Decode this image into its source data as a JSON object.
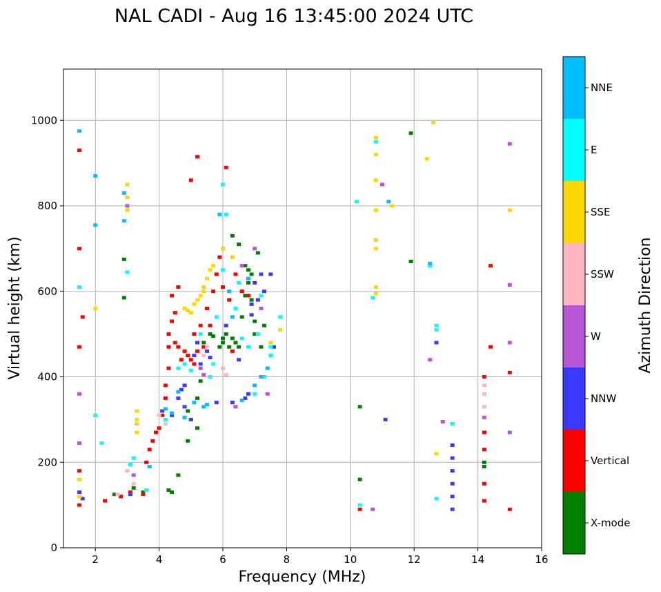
{
  "chart_data": {
    "type": "scatter",
    "title": "NAL CADI - Aug 16 13:45:00 2024 UTC",
    "xlabel": "Frequency (MHz)",
    "ylabel": "Virtual height (km)",
    "xlim": [
      1,
      16
    ],
    "ylim": [
      0,
      1120
    ],
    "xticks": [
      2,
      4,
      6,
      8,
      10,
      12,
      14,
      16
    ],
    "yticks": [
      0,
      200,
      400,
      600,
      800,
      1000
    ],
    "grid": true,
    "colorbar": {
      "label": "Azimuth Direction",
      "categories": [
        "X-mode",
        "Vertical",
        "NNW",
        "W",
        "SSW",
        "SSE",
        "E",
        "NNE"
      ],
      "colors": [
        "#008000",
        "#ff0000",
        "#3a3aff",
        "#b856d6",
        "#ffb6c1",
        "#ffd700",
        "#00ffff",
        "#00bfff"
      ]
    },
    "series": [
      {
        "name": "X-mode",
        "points": [
          [
            2.6,
            125
          ],
          [
            2.9,
            675
          ],
          [
            2.9,
            585
          ],
          [
            3.2,
            140
          ],
          [
            3.5,
            130
          ],
          [
            4.3,
            135
          ],
          [
            4.4,
            130
          ],
          [
            4.6,
            170
          ],
          [
            4.9,
            250
          ],
          [
            4.9,
            320
          ],
          [
            5.2,
            280
          ],
          [
            5.2,
            350
          ],
          [
            5.3,
            390
          ],
          [
            5.4,
            480
          ],
          [
            5.6,
            500
          ],
          [
            5.7,
            495
          ],
          [
            5.9,
            470
          ],
          [
            6.0,
            480
          ],
          [
            6.0,
            490
          ],
          [
            6.1,
            500
          ],
          [
            6.2,
            470
          ],
          [
            6.3,
            490
          ],
          [
            6.3,
            730
          ],
          [
            6.4,
            480
          ],
          [
            6.5,
            470
          ],
          [
            6.6,
            600
          ],
          [
            6.6,
            540
          ],
          [
            6.7,
            660
          ],
          [
            6.8,
            650
          ],
          [
            6.8,
            620
          ],
          [
            6.9,
            580
          ],
          [
            7.0,
            530
          ],
          [
            7.0,
            500
          ],
          [
            7.1,
            690
          ],
          [
            7.2,
            470
          ],
          [
            7.3,
            520
          ],
          [
            6.5,
            710
          ],
          [
            6.9,
            640
          ],
          [
            6.7,
            590
          ],
          [
            10.3,
            330
          ],
          [
            10.3,
            160
          ],
          [
            11.9,
            970
          ],
          [
            11.9,
            670
          ],
          [
            14.2,
            200
          ],
          [
            14.2,
            190
          ]
        ]
      },
      {
        "name": "Vertical",
        "points": [
          [
            1.5,
            470
          ],
          [
            1.5,
            180
          ],
          [
            1.5,
            100
          ],
          [
            1.5,
            930
          ],
          [
            1.6,
            540
          ],
          [
            1.5,
            700
          ],
          [
            2.3,
            110
          ],
          [
            2.8,
            120
          ],
          [
            3.1,
            130
          ],
          [
            3.5,
            125
          ],
          [
            3.6,
            200
          ],
          [
            3.7,
            230
          ],
          [
            3.8,
            250
          ],
          [
            3.9,
            270
          ],
          [
            4.0,
            280
          ],
          [
            4.1,
            310
          ],
          [
            4.2,
            350
          ],
          [
            4.2,
            380
          ],
          [
            4.3,
            420
          ],
          [
            4.3,
            470
          ],
          [
            4.3,
            500
          ],
          [
            4.4,
            590
          ],
          [
            4.4,
            530
          ],
          [
            4.5,
            550
          ],
          [
            4.5,
            480
          ],
          [
            4.6,
            470
          ],
          [
            4.7,
            440
          ],
          [
            4.6,
            610
          ],
          [
            4.8,
            460
          ],
          [
            4.9,
            450
          ],
          [
            5.0,
            440
          ],
          [
            5.1,
            430
          ],
          [
            5.1,
            500
          ],
          [
            5.2,
            460
          ],
          [
            5.3,
            520
          ],
          [
            5.4,
            470
          ],
          [
            5.5,
            560
          ],
          [
            5.6,
            520
          ],
          [
            5.7,
            600
          ],
          [
            5.8,
            640
          ],
          [
            5.9,
            680
          ],
          [
            6.0,
            610
          ],
          [
            6.0,
            700
          ],
          [
            6.1,
            890
          ],
          [
            6.2,
            580
          ],
          [
            6.3,
            460
          ],
          [
            6.4,
            640
          ],
          [
            6.6,
            600
          ],
          [
            6.8,
            590
          ],
          [
            5.2,
            915
          ],
          [
            5.0,
            860
          ],
          [
            10.3,
            90
          ],
          [
            14.2,
            400
          ],
          [
            14.2,
            230
          ],
          [
            14.2,
            150
          ],
          [
            14.2,
            110
          ],
          [
            14.2,
            270
          ],
          [
            14.4,
            660
          ],
          [
            14.4,
            470
          ],
          [
            15.0,
            410
          ],
          [
            15.0,
            90
          ]
        ]
      },
      {
        "name": "NNW",
        "points": [
          [
            1.5,
            130
          ],
          [
            1.6,
            115
          ],
          [
            3.1,
            125
          ],
          [
            4.1,
            320
          ],
          [
            4.4,
            310
          ],
          [
            4.6,
            350
          ],
          [
            4.7,
            370
          ],
          [
            4.8,
            380
          ],
          [
            4.8,
            330
          ],
          [
            5.0,
            300
          ],
          [
            5.1,
            450
          ],
          [
            5.2,
            480
          ],
          [
            5.3,
            430
          ],
          [
            5.5,
            460
          ],
          [
            5.6,
            445
          ],
          [
            5.8,
            340
          ],
          [
            6.1,
            520
          ],
          [
            6.3,
            340
          ],
          [
            6.5,
            440
          ],
          [
            6.7,
            350
          ],
          [
            6.8,
            360
          ],
          [
            6.9,
            570
          ],
          [
            7.0,
            620
          ],
          [
            7.1,
            580
          ],
          [
            7.2,
            640
          ],
          [
            7.3,
            600
          ],
          [
            7.5,
            640
          ],
          [
            7.6,
            470
          ],
          [
            6.9,
            545
          ],
          [
            11.1,
            300
          ],
          [
            13.2,
            290
          ],
          [
            13.2,
            240
          ],
          [
            13.2,
            210
          ],
          [
            13.2,
            180
          ],
          [
            13.2,
            150
          ],
          [
            13.2,
            120
          ],
          [
            13.2,
            90
          ],
          [
            12.7,
            480
          ]
        ]
      },
      {
        "name": "W",
        "points": [
          [
            1.5,
            360
          ],
          [
            1.5,
            245
          ],
          [
            3.0,
            800
          ],
          [
            3.2,
            170
          ],
          [
            5.3,
            420
          ],
          [
            5.4,
            405
          ],
          [
            6.4,
            330
          ],
          [
            6.6,
            660
          ],
          [
            7.0,
            700
          ],
          [
            7.2,
            560
          ],
          [
            7.4,
            360
          ],
          [
            10.7,
            90
          ],
          [
            11.0,
            850
          ],
          [
            12.5,
            440
          ],
          [
            12.9,
            295
          ],
          [
            14.2,
            305
          ],
          [
            15.0,
            270
          ],
          [
            15.0,
            480
          ],
          [
            15.0,
            615
          ],
          [
            15.0,
            945
          ]
        ]
      },
      {
        "name": "SSW",
        "points": [
          [
            2.7,
            125
          ],
          [
            3.0,
            180
          ],
          [
            3.2,
            150
          ],
          [
            4.0,
            310
          ],
          [
            4.2,
            290
          ],
          [
            5.4,
            450
          ],
          [
            5.5,
            470
          ],
          [
            6.0,
            420
          ],
          [
            6.1,
            405
          ],
          [
            14.2,
            330
          ],
          [
            14.2,
            360
          ],
          [
            14.2,
            380
          ]
        ]
      },
      {
        "name": "SSE",
        "points": [
          [
            1.5,
            160
          ],
          [
            1.5,
            120
          ],
          [
            2.0,
            560
          ],
          [
            3.0,
            850
          ],
          [
            3.0,
            820
          ],
          [
            3.0,
            790
          ],
          [
            3.3,
            320
          ],
          [
            3.3,
            300
          ],
          [
            3.3,
            290
          ],
          [
            3.3,
            270
          ],
          [
            4.8,
            560
          ],
          [
            4.9,
            555
          ],
          [
            5.0,
            550
          ],
          [
            5.1,
            570
          ],
          [
            5.2,
            580
          ],
          [
            5.3,
            590
          ],
          [
            5.4,
            610
          ],
          [
            5.5,
            630
          ],
          [
            5.6,
            650
          ],
          [
            5.7,
            660
          ],
          [
            5.4,
            600
          ],
          [
            6.0,
            700
          ],
          [
            6.3,
            680
          ],
          [
            7.5,
            480
          ],
          [
            7.8,
            510
          ],
          [
            10.8,
            960
          ],
          [
            10.8,
            920
          ],
          [
            10.8,
            860
          ],
          [
            10.8,
            790
          ],
          [
            10.8,
            720
          ],
          [
            10.8,
            700
          ],
          [
            10.8,
            610
          ],
          [
            10.8,
            595
          ],
          [
            11.3,
            800
          ],
          [
            12.4,
            910
          ],
          [
            12.6,
            995
          ],
          [
            12.7,
            220
          ],
          [
            15.0,
            790
          ]
        ]
      },
      {
        "name": "E",
        "points": [
          [
            1.5,
            610
          ],
          [
            2.0,
            310
          ],
          [
            2.2,
            245
          ],
          [
            3.0,
            645
          ],
          [
            3.1,
            195
          ],
          [
            3.2,
            210
          ],
          [
            3.6,
            135
          ],
          [
            4.2,
            300
          ],
          [
            4.6,
            420
          ],
          [
            4.8,
            430
          ],
          [
            5.0,
            415
          ],
          [
            5.3,
            500
          ],
          [
            5.6,
            400
          ],
          [
            5.7,
            430
          ],
          [
            5.8,
            540
          ],
          [
            6.0,
            650
          ],
          [
            6.0,
            850
          ],
          [
            6.1,
            780
          ],
          [
            6.4,
            560
          ],
          [
            6.5,
            620
          ],
          [
            6.6,
            490
          ],
          [
            6.8,
            470
          ],
          [
            7.0,
            360
          ],
          [
            7.1,
            500
          ],
          [
            7.2,
            590
          ],
          [
            7.3,
            400
          ],
          [
            7.5,
            450
          ],
          [
            7.5,
            470
          ],
          [
            7.8,
            540
          ],
          [
            10.2,
            810
          ],
          [
            10.3,
            100
          ],
          [
            10.7,
            585
          ],
          [
            10.8,
            950
          ],
          [
            12.5,
            660
          ],
          [
            12.7,
            520
          ],
          [
            12.7,
            510
          ],
          [
            12.7,
            115
          ],
          [
            13.2,
            290
          ]
        ]
      },
      {
        "name": "NNE",
        "points": [
          [
            1.5,
            975
          ],
          [
            2.0,
            870
          ],
          [
            2.0,
            755
          ],
          [
            2.9,
            830
          ],
          [
            2.9,
            765
          ],
          [
            3.7,
            190
          ],
          [
            4.2,
            325
          ],
          [
            4.4,
            315
          ],
          [
            4.6,
            365
          ],
          [
            4.8,
            305
          ],
          [
            5.1,
            340
          ],
          [
            5.4,
            330
          ],
          [
            5.5,
            335
          ],
          [
            5.9,
            780
          ],
          [
            6.2,
            600
          ],
          [
            6.3,
            540
          ],
          [
            6.6,
            345
          ],
          [
            6.8,
            630
          ],
          [
            7.0,
            380
          ],
          [
            7.2,
            400
          ],
          [
            7.4,
            420
          ],
          [
            11.2,
            810
          ],
          [
            12.5,
            665
          ]
        ]
      }
    ]
  }
}
